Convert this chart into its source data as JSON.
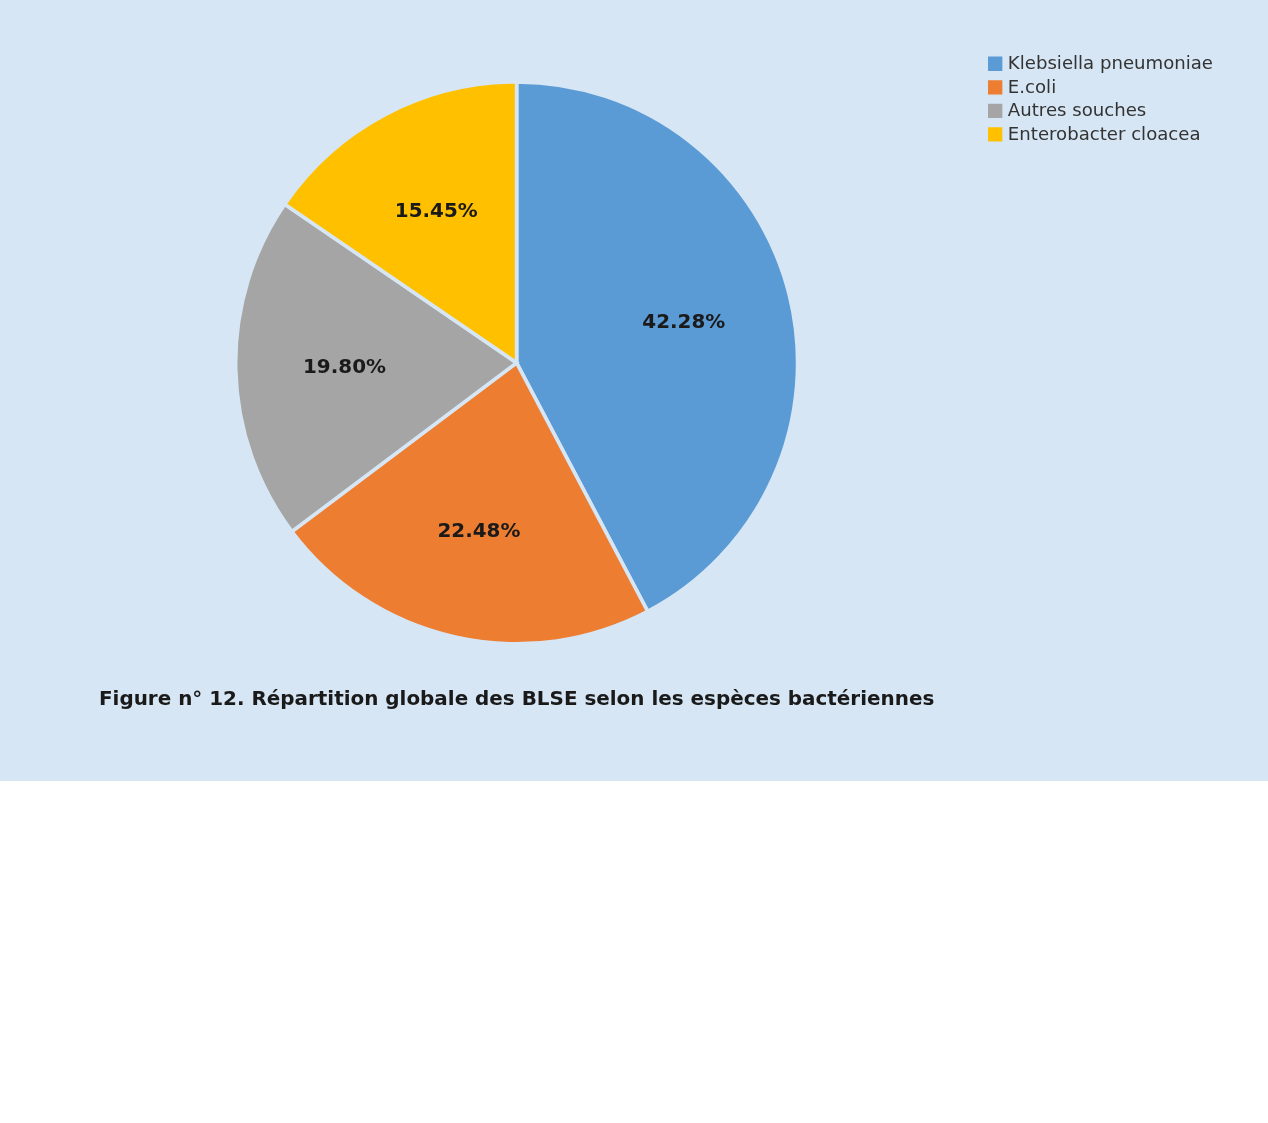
{
  "chart_data": {
    "type": "pie",
    "title": "Figure n° 12. Répartition globale des BLSE selon les espèces bactériennes",
    "categories": [
      "Klebsiella pneumoniae",
      "E.coli",
      "Autres souches",
      "Enterobacter cloacea"
    ],
    "values": [
      42.28,
      22.48,
      19.8,
      15.45
    ],
    "value_labels": [
      "42.28%",
      "22.48%",
      "19.80%",
      "15.45%"
    ],
    "colors": [
      "#5b9bd5",
      "#ed7d31",
      "#a5a5a5",
      "#ffc000"
    ],
    "legend": "right"
  }
}
